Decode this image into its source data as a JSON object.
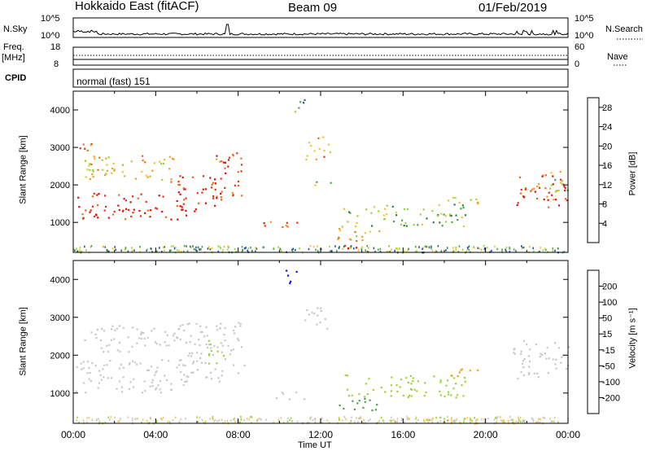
{
  "header": {
    "radar": "Hokkaido East (fitACF)",
    "beam": "Beam 09",
    "date": "01/Feb/2019"
  },
  "nsky_panel": {
    "left_label": "N.Sky",
    "left_ticks": [
      "10^5",
      "10^0"
    ],
    "right_label": "N.Search",
    "right_ticks": [
      "10^5",
      "10^0"
    ]
  },
  "freq_panel": {
    "left_label_1": "Freq.",
    "left_label_2": "[MHz]",
    "left_ticks": [
      "18",
      "8"
    ],
    "right_label": "Nave",
    "right_ticks": [
      "60",
      "0"
    ]
  },
  "cpid_panel": {
    "label": "CPID",
    "value": "normal (fast) 151"
  },
  "colors": {
    "power_scale": [
      "#0a12e8",
      "#1e4fa8",
      "#2f7a4a",
      "#4aa64a",
      "#9ad43a",
      "#f0c52a",
      "#f59a1f",
      "#f06a14",
      "#e8300e",
      "#d8100a"
    ],
    "velocity_scale": [
      "#d8100a",
      "#f05a14",
      "#f5a01f",
      "#f5c850",
      "#c8c8c8",
      "#9ad43a",
      "#4aa64a",
      "#2a7a55",
      "#0a12e8"
    ]
  },
  "chart_data": [
    {
      "type": "heatmap",
      "name": "Power",
      "ylabel": "Slant Range [km]",
      "ylim": [
        200,
        4500
      ],
      "yticks": [
        "1000",
        "2000",
        "3000",
        "4000"
      ],
      "xlim": [
        "00:00",
        "24:00"
      ],
      "colorbar_label": "Power [dB]",
      "colorbar_ticks": [
        "4",
        "8",
        "12",
        "16",
        "20",
        "24",
        "28"
      ],
      "colorbar_range": [
        0,
        30
      ],
      "blobs": [
        {
          "t0": 0.1,
          "t1": 5.5,
          "r0": 1100,
          "r1": 1800,
          "v": 27
        },
        {
          "t0": 5.0,
          "t1": 7.2,
          "r0": 1300,
          "r1": 2300,
          "v": 26
        },
        {
          "t0": 6.8,
          "t1": 8.3,
          "r0": 1700,
          "r1": 2900,
          "v": 25
        },
        {
          "t0": 0.5,
          "t1": 5.0,
          "r0": 2100,
          "r1": 2800,
          "v": 18
        },
        {
          "t0": 0.2,
          "t1": 1.0,
          "r0": 2700,
          "r1": 3200,
          "v": 22
        },
        {
          "t0": 9.2,
          "t1": 11.5,
          "r0": 850,
          "r1": 1050,
          "v": 24
        },
        {
          "t0": 11.2,
          "t1": 12.5,
          "r0": 2700,
          "r1": 3300,
          "v": 20
        },
        {
          "t0": 11.5,
          "t1": 12.5,
          "r0": 1950,
          "r1": 2100,
          "v": 14
        },
        {
          "t0": 12.8,
          "t1": 15.0,
          "r0": 500,
          "r1": 900,
          "v": 18
        },
        {
          "t0": 13.0,
          "t1": 14.0,
          "r0": 250,
          "r1": 450,
          "v": 28
        },
        {
          "t0": 13.0,
          "t1": 19.0,
          "r0": 900,
          "r1": 1500,
          "v": 12
        },
        {
          "t0": 17.8,
          "t1": 19.6,
          "r0": 1450,
          "r1": 1700,
          "v": 16
        },
        {
          "t0": 21.3,
          "t1": 24.0,
          "r0": 1400,
          "r1": 2300,
          "v": 25
        },
        {
          "t0": 22.8,
          "t1": 24.0,
          "r0": 1800,
          "r1": 2400,
          "v": 15
        },
        {
          "t0": 10.5,
          "t1": 11.3,
          "r0": 3900,
          "r1": 4300,
          "v": 10
        }
      ]
    },
    {
      "type": "heatmap",
      "name": "Velocity",
      "ylabel": "Slant Range [km]",
      "ylim": [
        200,
        4500
      ],
      "yticks": [
        "1000",
        "2000",
        "3000",
        "4000"
      ],
      "xlim": [
        "00:00",
        "24:00"
      ],
      "xticks": [
        "00:00",
        "04:00",
        "08:00",
        "12:00",
        "16:00",
        "20:00",
        "00:00"
      ],
      "xlabel": "Time UT",
      "colorbar_label": "Velocity [m s⁻¹]",
      "colorbar_ticks": [
        "200",
        "100",
        "50",
        "15",
        "-15",
        "-50",
        "-100",
        "-200"
      ],
      "colorbar_range": [
        -250,
        250
      ],
      "blobs": [
        {
          "t0": 0.1,
          "t1": 5.5,
          "r0": 1000,
          "r1": 1900,
          "v": 0
        },
        {
          "t0": 5.0,
          "t1": 8.3,
          "r0": 1300,
          "r1": 2900,
          "v": 0
        },
        {
          "t0": 0.5,
          "t1": 5.0,
          "r0": 2100,
          "r1": 2800,
          "v": 0
        },
        {
          "t0": 6.5,
          "t1": 7.3,
          "r0": 1800,
          "r1": 2500,
          "v": 30
        },
        {
          "t0": 10.3,
          "t1": 11.0,
          "r0": 3900,
          "r1": 4300,
          "v": 210
        },
        {
          "t0": 9.3,
          "t1": 11.2,
          "r0": 850,
          "r1": 1050,
          "v": 0
        },
        {
          "t0": 11.2,
          "t1": 12.5,
          "r0": 2700,
          "r1": 3300,
          "v": 0
        },
        {
          "t0": 12.8,
          "t1": 15.0,
          "r0": 550,
          "r1": 900,
          "v": 60
        },
        {
          "t0": 13.0,
          "t1": 19.0,
          "r0": 900,
          "r1": 1500,
          "v": 30
        },
        {
          "t0": 18.0,
          "t1": 19.6,
          "r0": 1450,
          "r1": 1700,
          "v": -60
        },
        {
          "t0": 21.3,
          "t1": 24.0,
          "r0": 1400,
          "r1": 2400,
          "v": 0
        },
        {
          "t0": 15.0,
          "t1": 24.0,
          "r0": 200,
          "r1": 330,
          "v": -40
        }
      ]
    }
  ]
}
